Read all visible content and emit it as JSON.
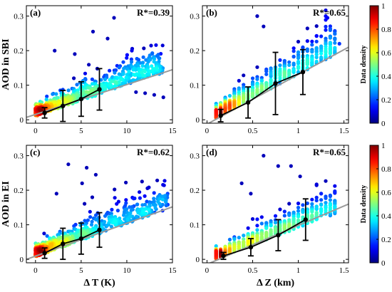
{
  "figure": {
    "colorbar_label": "Data density",
    "colorbar_ticks": [
      "0",
      "0.2",
      "0.4",
      "0.6",
      "0.8",
      "1"
    ]
  },
  "chart_data": [
    {
      "type": "scatter",
      "panel": "(a)",
      "annotation": "R*=0.39",
      "xlabel": "",
      "ylabel": "AOD in SBI",
      "xlim": [
        -1,
        15
      ],
      "ylim": [
        -0.01,
        0.33
      ],
      "xticks": [
        0,
        5,
        10,
        15
      ],
      "yticks": [
        0,
        0.1,
        0.2,
        0.3
      ],
      "fit_line": {
        "x": [
          -1,
          15
        ],
        "y": [
          0.007,
          0.145
        ]
      },
      "binned_means": {
        "x": [
          1,
          3,
          5,
          7
        ],
        "y": [
          0.02,
          0.04,
          0.06,
          0.088
        ],
        "err": [
          0.015,
          0.045,
          0.05,
          0.06
        ]
      },
      "scatter": {
        "x_range": [
          0,
          14
        ],
        "y_base": 0.015,
        "y_slope": 0.009,
        "outliers": [
          [
            8.6,
            0.295
          ],
          [
            6.3,
            0.255
          ],
          [
            7.9,
            0.235
          ],
          [
            2.1,
            0.2
          ],
          [
            4.3,
            0.19
          ],
          [
            11,
            0.08
          ],
          [
            12,
            0.077
          ],
          [
            13,
            0.072
          ],
          [
            14,
            0.065
          ]
        ]
      }
    },
    {
      "type": "scatter",
      "panel": "(b)",
      "annotation": "R*=0.65",
      "xlabel": "",
      "ylabel": "",
      "xlim": [
        -0.05,
        1.55
      ],
      "ylim": [
        -0.01,
        0.33
      ],
      "xticks": [
        0,
        0.5,
        1,
        1.5
      ],
      "yticks": [
        0,
        0.1,
        0.2,
        0.3
      ],
      "fit_line": {
        "x": [
          -0.05,
          1.55
        ],
        "y": [
          -0.02,
          0.21
        ]
      },
      "binned_means": {
        "x": [
          0.15,
          0.45,
          0.75,
          1.05
        ],
        "y": [
          0.012,
          0.05,
          0.105,
          0.138
        ],
        "err": [
          0.018,
          0.045,
          0.09,
          0.065
        ]
      },
      "scatter": {
        "x_range": [
          0.1,
          1.45
        ],
        "y_base": -0.005,
        "y_slope": 0.14,
        "outliers": [
          [
            0.55,
            0.3
          ],
          [
            1.32,
            0.295
          ],
          [
            0.62,
            0.27
          ],
          [
            1.45,
            0.22
          ]
        ]
      }
    },
    {
      "type": "scatter",
      "panel": "(c)",
      "annotation": "R*=0.62",
      "xlabel": "Δ T (K)",
      "ylabel": "AOD in EI",
      "xlim": [
        -1,
        15
      ],
      "ylim": [
        -0.01,
        0.33
      ],
      "xticks": [
        0,
        5,
        10,
        15
      ],
      "yticks": [
        0,
        0.1,
        0.2,
        0.3
      ],
      "fit_line": {
        "x": [
          -1,
          15
        ],
        "y": [
          0.0,
          0.152
        ]
      },
      "binned_means": {
        "x": [
          1,
          3,
          5,
          7
        ],
        "y": [
          0.018,
          0.045,
          0.06,
          0.085
        ],
        "err": [
          0.015,
          0.045,
          0.045,
          0.05
        ]
      },
      "scatter": {
        "x_range": [
          0,
          14.5
        ],
        "y_base": 0.012,
        "y_slope": 0.0095,
        "outliers": [
          [
            3.6,
            0.275
          ],
          [
            5.6,
            0.265
          ],
          [
            6.6,
            0.245
          ],
          [
            5.1,
            0.22
          ],
          [
            2.3,
            0.19
          ]
        ]
      }
    },
    {
      "type": "scatter",
      "panel": "(d)",
      "annotation": "R*=0.65",
      "xlabel": "Δ Z (km)",
      "ylabel": "",
      "xlim": [
        -0.05,
        1.55
      ],
      "ylim": [
        -0.01,
        0.33
      ],
      "xticks": [
        0,
        0.5,
        1,
        1.5
      ],
      "yticks": [
        0,
        0.1,
        0.2,
        0.3
      ],
      "fit_line": {
        "x": [
          -0.05,
          1.55
        ],
        "y": [
          -0.02,
          0.16
        ]
      },
      "binned_means": {
        "x": [
          0.18,
          0.48,
          0.78,
          1.08
        ],
        "y": [
          0.01,
          0.035,
          0.07,
          0.115
        ],
        "err": [
          0.01,
          0.025,
          0.045,
          0.06
        ]
      },
      "scatter": {
        "x_range": [
          0.1,
          1.4
        ],
        "y_base": -0.005,
        "y_slope": 0.1,
        "outliers": [
          [
            0.62,
            0.3
          ],
          [
            0.78,
            0.27
          ],
          [
            0.92,
            0.27
          ],
          [
            1.02,
            0.24
          ],
          [
            0.38,
            0.22
          ],
          [
            0.48,
            0.19
          ]
        ]
      }
    }
  ]
}
